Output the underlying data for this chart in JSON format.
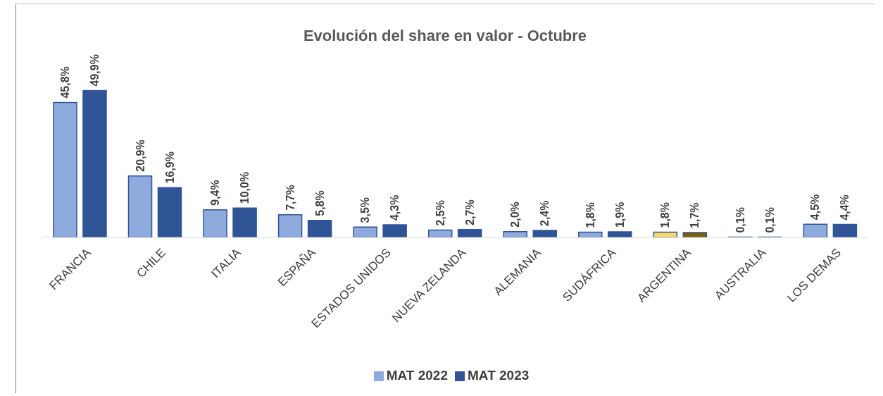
{
  "chart_data": {
    "type": "bar",
    "title": "Evolución del share en valor - Octubre",
    "categories": [
      "FRANCIA",
      "CHILE",
      "ITALIA",
      "ESPAÑA",
      "ESTADOS UNIDOS",
      "NUEVA ZELANDA",
      "ALEMANIA",
      "SUDÁFRICA",
      "ARGENTINA",
      "AUSTRALIA",
      "LOS DEMAS"
    ],
    "series": [
      {
        "name": "MAT 2022",
        "color": "#8faadc",
        "colors": [
          "#8faadc",
          "#8faadc",
          "#8faadc",
          "#8faadc",
          "#8faadc",
          "#8faadc",
          "#8faadc",
          "#8faadc",
          "#ffd966",
          "#8faadc",
          "#8faadc"
        ],
        "values": [
          45.8,
          20.9,
          9.4,
          7.7,
          3.5,
          2.5,
          2.0,
          1.8,
          1.8,
          0.1,
          4.5
        ],
        "value_labels": [
          "45,8%",
          "20,9%",
          "9,4%",
          "7,7%",
          "3,5%",
          "2,5%",
          "2,0%",
          "1,8%",
          "1,8%",
          "0,1%",
          "4,5%"
        ]
      },
      {
        "name": "MAT 2023",
        "color": "#2f5597",
        "colors": [
          "#2f5597",
          "#2f5597",
          "#2f5597",
          "#2f5597",
          "#2f5597",
          "#2f5597",
          "#2f5597",
          "#2f5597",
          "#7f6000",
          "#dae3f3",
          "#2f5597"
        ],
        "values": [
          49.9,
          16.9,
          10.0,
          5.8,
          4.3,
          2.7,
          2.4,
          1.9,
          1.7,
          0.1,
          4.4
        ],
        "value_labels": [
          "49,9%",
          "16,9%",
          "10,0%",
          "5,8%",
          "4,3%",
          "2,7%",
          "2,4%",
          "1,9%",
          "1,7%",
          "0,1%",
          "4,4%"
        ]
      }
    ],
    "legend": "bottom",
    "grid": false
  }
}
